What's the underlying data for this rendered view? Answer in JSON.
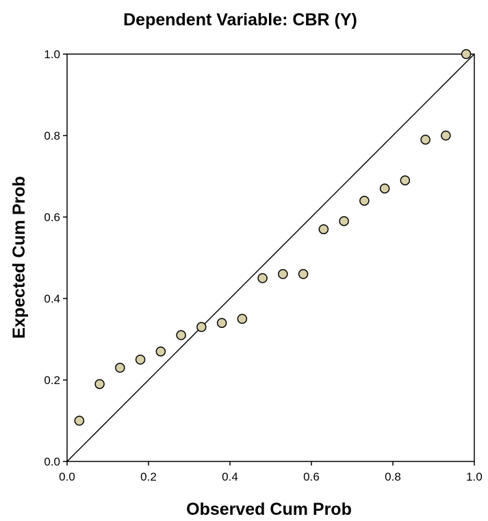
{
  "chart_data": {
    "type": "scatter",
    "title": "Dependent Variable: CBR (Y)",
    "xlabel": "Observed Cum Prob",
    "ylabel": "Expected Cum Prob",
    "xlim": [
      0.0,
      1.0
    ],
    "ylim": [
      0.0,
      1.0
    ],
    "x_ticks": [
      "0.0",
      "0.2",
      "0.4",
      "0.6",
      "0.8",
      "1.0"
    ],
    "y_ticks": [
      "0.0",
      "0.2",
      "0.4",
      "0.6",
      "0.8",
      "1.0"
    ],
    "grid": false,
    "reference_line": {
      "from": [
        0.0,
        0.0
      ],
      "to": [
        1.0,
        1.0
      ]
    },
    "marker_color": "#d8d0a8",
    "series": [
      {
        "points": [
          {
            "x": 0.03,
            "y": 0.1
          },
          {
            "x": 0.08,
            "y": 0.19
          },
          {
            "x": 0.13,
            "y": 0.23
          },
          {
            "x": 0.18,
            "y": 0.25
          },
          {
            "x": 0.23,
            "y": 0.27
          },
          {
            "x": 0.28,
            "y": 0.31
          },
          {
            "x": 0.33,
            "y": 0.33
          },
          {
            "x": 0.38,
            "y": 0.34
          },
          {
            "x": 0.43,
            "y": 0.35
          },
          {
            "x": 0.48,
            "y": 0.45
          },
          {
            "x": 0.53,
            "y": 0.46
          },
          {
            "x": 0.58,
            "y": 0.46
          },
          {
            "x": 0.63,
            "y": 0.57
          },
          {
            "x": 0.68,
            "y": 0.59
          },
          {
            "x": 0.73,
            "y": 0.64
          },
          {
            "x": 0.78,
            "y": 0.67
          },
          {
            "x": 0.83,
            "y": 0.69
          },
          {
            "x": 0.88,
            "y": 0.79
          },
          {
            "x": 0.93,
            "y": 0.8
          },
          {
            "x": 0.98,
            "y": 1.0
          }
        ]
      }
    ]
  }
}
